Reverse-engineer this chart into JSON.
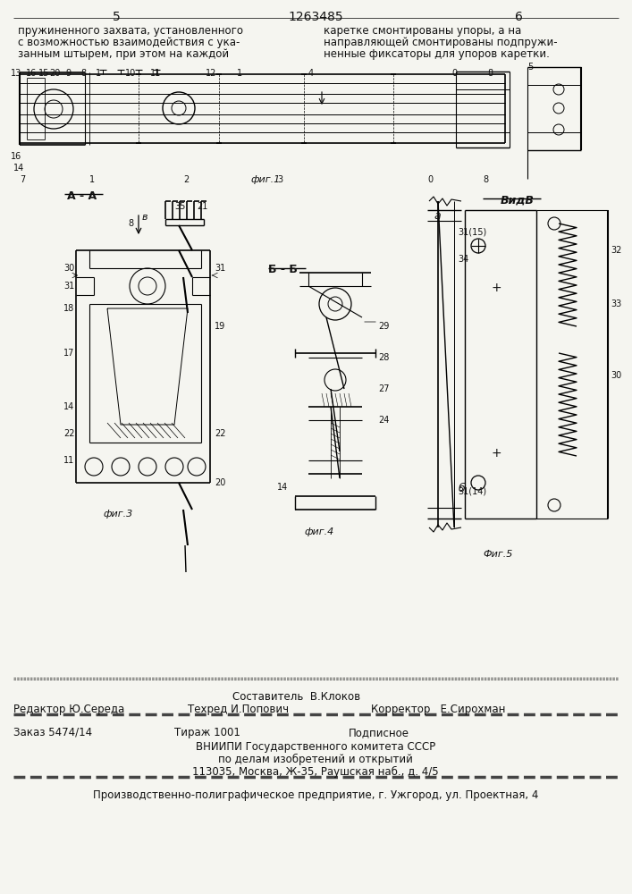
{
  "page_number_left": "5",
  "page_number_center": "1263485",
  "page_number_right": "6",
  "text_left_col": "пружиненного захвата, установленного\nс возможностью взаимодействия с ука-\nзанным штырем, при этом на каждой",
  "text_right_col": "каретке смонтированы упоры, а на\nнаправляющей смонтированы подпружи-\nненные фиксаторы для упоров каретки.",
  "footer_composer": "Составитель  В.Клоков",
  "footer_editor_label": "Редактор",
  "footer_editor": "Ю.Середа",
  "footer_tech_label": "Техред",
  "footer_tech": "И.Попович",
  "footer_corrector_label": "Корректор",
  "footer_corrector": "Е.Сирохман",
  "footer_order": "Заказ 5474/14",
  "footer_tirazh": "Тираж 1001",
  "footer_podpisnoe": "Подписное",
  "footer_org1": "ВНИИПИ Государственного комитета СССР",
  "footer_org2": "по делам изобретений и открытий",
  "footer_org3": "113035, Москва, Ж-35, Раушская наб., д. 4/5",
  "footer_print": "Производственно-полиграфическое предприятие, г. Ужгород, ул. Проектная, 4",
  "bg_color": "#f5f5f0",
  "text_color": "#000000"
}
